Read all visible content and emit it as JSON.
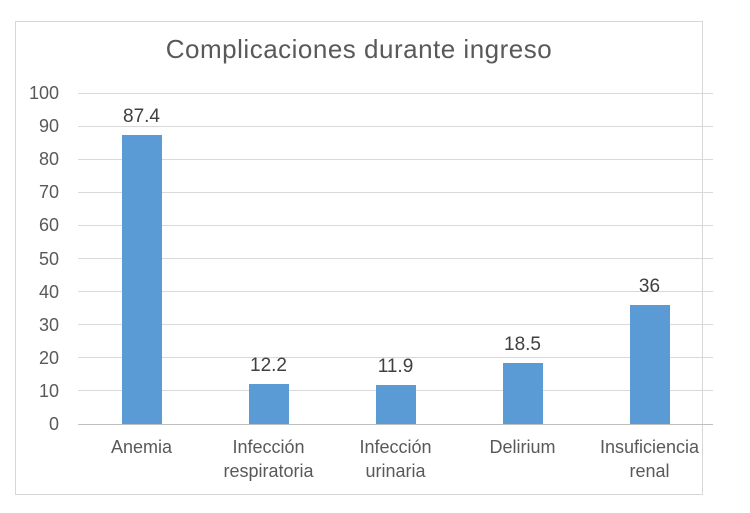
{
  "chart": {
    "colors": {
      "bar": "#5b9bd5",
      "title_text": "#595959",
      "axis_text": "#595959",
      "data_label_text": "#404040",
      "gridline": "#d9d9d9",
      "axis_line": "#bfbfbf",
      "frame_border": "#d7d7d7",
      "background": "#ffffff"
    }
  },
  "chart_data": {
    "type": "bar",
    "title": "Complicaciones durante ingreso",
    "categories": [
      "Anemia",
      "Infección respiratoria",
      "Infección urinaria",
      "Delirium",
      "Insuficiencia renal"
    ],
    "values": [
      87.4,
      12.2,
      11.9,
      18.5,
      36
    ],
    "data_labels": [
      "87.4",
      "12.2",
      "11.9",
      "18.5",
      "36"
    ],
    "xlabel": "",
    "ylabel": "",
    "ylim": [
      0,
      100
    ],
    "yticks": [
      0,
      10,
      20,
      30,
      40,
      50,
      60,
      70,
      80,
      90,
      100
    ],
    "grid": "horizontal",
    "legend": "none",
    "bar_color": "#5b9bd5"
  }
}
